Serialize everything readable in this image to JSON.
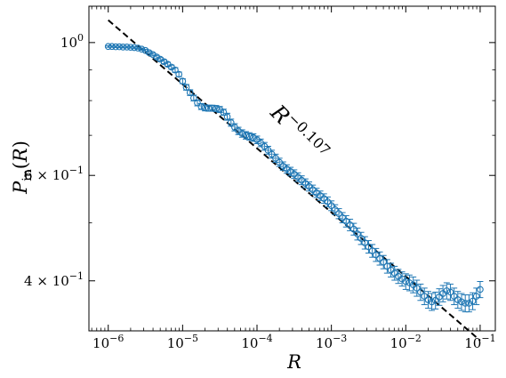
{
  "chart_data": {
    "type": "scatter",
    "title": "",
    "xlabel": "R",
    "ylabel": {
      "base": "P",
      "sub": "in",
      "arg": "(R)"
    },
    "xscale": "log",
    "yscale": "log",
    "xlim": [
      5.5e-07,
      0.16
    ],
    "ylim": [
      0.33,
      1.15
    ],
    "grid": false,
    "legend": "none",
    "x_ticks": [
      {
        "value": 1e-06,
        "base": "10",
        "exp": "−6"
      },
      {
        "value": 1e-05,
        "base": "10",
        "exp": "−5"
      },
      {
        "value": 0.0001,
        "base": "10",
        "exp": "−4"
      },
      {
        "value": 0.001,
        "base": "10",
        "exp": "−3"
      },
      {
        "value": 0.01,
        "base": "10",
        "exp": "−2"
      },
      {
        "value": 0.1,
        "base": "10",
        "exp": "−1"
      }
    ],
    "y_ticks": [
      {
        "value": 1.0,
        "mant": "",
        "base": "10",
        "exp": "0"
      },
      {
        "value": 0.6,
        "mant": "6 × ",
        "base": "10",
        "exp": "−1"
      },
      {
        "value": 0.4,
        "mant": "4 × ",
        "base": "10",
        "exp": "−1"
      }
    ],
    "y_minor_ticks": [
      0.5,
      0.7,
      0.8,
      0.9
    ],
    "fit_line": {
      "label_base": "R",
      "label_exp": "−0.107",
      "exponent": -0.107,
      "x_start": 1e-06,
      "x_end": 0.1,
      "y_start": 1.09,
      "y_end": 0.318,
      "style": "dashed",
      "color": "#000000"
    },
    "series": [
      {
        "marker": "open-circle",
        "color": "#1f77b4",
        "x": [
          1e-06,
          1.12e-06,
          1.26e-06,
          1.41e-06,
          1.58e-06,
          1.78e-06,
          2e-06,
          2.24e-06,
          2.51e-06,
          2.82e-06,
          3.16e-06,
          3.55e-06,
          3.98e-06,
          4.47e-06,
          5.01e-06,
          5.62e-06,
          6.31e-06,
          7.08e-06,
          7.94e-06,
          8.91e-06,
          1e-05,
          1.12e-05,
          1.26e-05,
          1.41e-05,
          1.58e-05,
          1.78e-05,
          2e-05,
          2.24e-05,
          2.51e-05,
          2.82e-05,
          3.16e-05,
          3.55e-05,
          3.98e-05,
          4.47e-05,
          5.01e-05,
          5.62e-05,
          6.31e-05,
          7.08e-05,
          7.94e-05,
          8.91e-05,
          0.0001,
          0.000112,
          0.000126,
          0.000141,
          0.000158,
          0.000178,
          0.0002,
          0.000224,
          0.000251,
          0.000282,
          0.000316,
          0.000355,
          0.000398,
          0.000447,
          0.000501,
          0.000562,
          0.000631,
          0.000708,
          0.000794,
          0.000891,
          0.001,
          0.00112,
          0.00126,
          0.00141,
          0.00158,
          0.00178,
          0.002,
          0.00224,
          0.00251,
          0.00282,
          0.00316,
          0.00355,
          0.00398,
          0.00447,
          0.00501,
          0.00562,
          0.00631,
          0.00708,
          0.00794,
          0.00891,
          0.01,
          0.0112,
          0.0126,
          0.0141,
          0.0158,
          0.0178,
          0.02,
          0.0224,
          0.0251,
          0.0282,
          0.0316,
          0.0355,
          0.0398,
          0.0447,
          0.0501,
          0.0562,
          0.0631,
          0.0708,
          0.0794,
          0.0891,
          0.1
        ],
        "y": [
          0.985,
          0.985,
          0.984,
          0.984,
          0.983,
          0.983,
          0.982,
          0.981,
          0.979,
          0.975,
          0.97,
          0.962,
          0.955,
          0.946,
          0.938,
          0.929,
          0.92,
          0.91,
          0.9,
          0.885,
          0.862,
          0.842,
          0.825,
          0.808,
          0.793,
          0.782,
          0.778,
          0.777,
          0.777,
          0.776,
          0.773,
          0.765,
          0.752,
          0.735,
          0.722,
          0.712,
          0.705,
          0.7,
          0.697,
          0.694,
          0.688,
          0.68,
          0.671,
          0.661,
          0.651,
          0.641,
          0.631,
          0.622,
          0.615,
          0.609,
          0.603,
          0.596,
          0.589,
          0.582,
          0.575,
          0.568,
          0.561,
          0.555,
          0.549,
          0.542,
          0.534,
          0.526,
          0.518,
          0.51,
          0.503,
          0.496,
          0.488,
          0.479,
          0.471,
          0.463,
          0.456,
          0.449,
          0.442,
          0.436,
          0.43,
          0.423,
          0.417,
          0.412,
          0.407,
          0.403,
          0.399,
          0.397,
          0.394,
          0.389,
          0.383,
          0.377,
          0.372,
          0.369,
          0.371,
          0.376,
          0.381,
          0.385,
          0.383,
          0.377,
          0.372,
          0.369,
          0.367,
          0.367,
          0.37,
          0.377,
          0.387
        ],
        "yerr": [
          0.003,
          0.003,
          0.003,
          0.003,
          0.003,
          0.003,
          0.003,
          0.003,
          0.004,
          0.004,
          0.004,
          0.005,
          0.005,
          0.006,
          0.006,
          0.007,
          0.007,
          0.007,
          0.008,
          0.008,
          0.008,
          0.009,
          0.009,
          0.009,
          0.009,
          0.009,
          0.009,
          0.009,
          0.009,
          0.009,
          0.009,
          0.009,
          0.01,
          0.01,
          0.01,
          0.01,
          0.01,
          0.01,
          0.01,
          0.01,
          0.01,
          0.01,
          0.01,
          0.01,
          0.01,
          0.01,
          0.01,
          0.01,
          0.01,
          0.01,
          0.01,
          0.01,
          0.01,
          0.01,
          0.01,
          0.01,
          0.01,
          0.01,
          0.01,
          0.01,
          0.01,
          0.01,
          0.01,
          0.01,
          0.011,
          0.011,
          0.011,
          0.011,
          0.011,
          0.011,
          0.011,
          0.011,
          0.011,
          0.011,
          0.011,
          0.011,
          0.011,
          0.011,
          0.011,
          0.011,
          0.012,
          0.012,
          0.012,
          0.012,
          0.012,
          0.012,
          0.012,
          0.012,
          0.012,
          0.012,
          0.012,
          0.012,
          0.012,
          0.012,
          0.012,
          0.012,
          0.012,
          0.012,
          0.012,
          0.012,
          0.012
        ]
      }
    ]
  }
}
